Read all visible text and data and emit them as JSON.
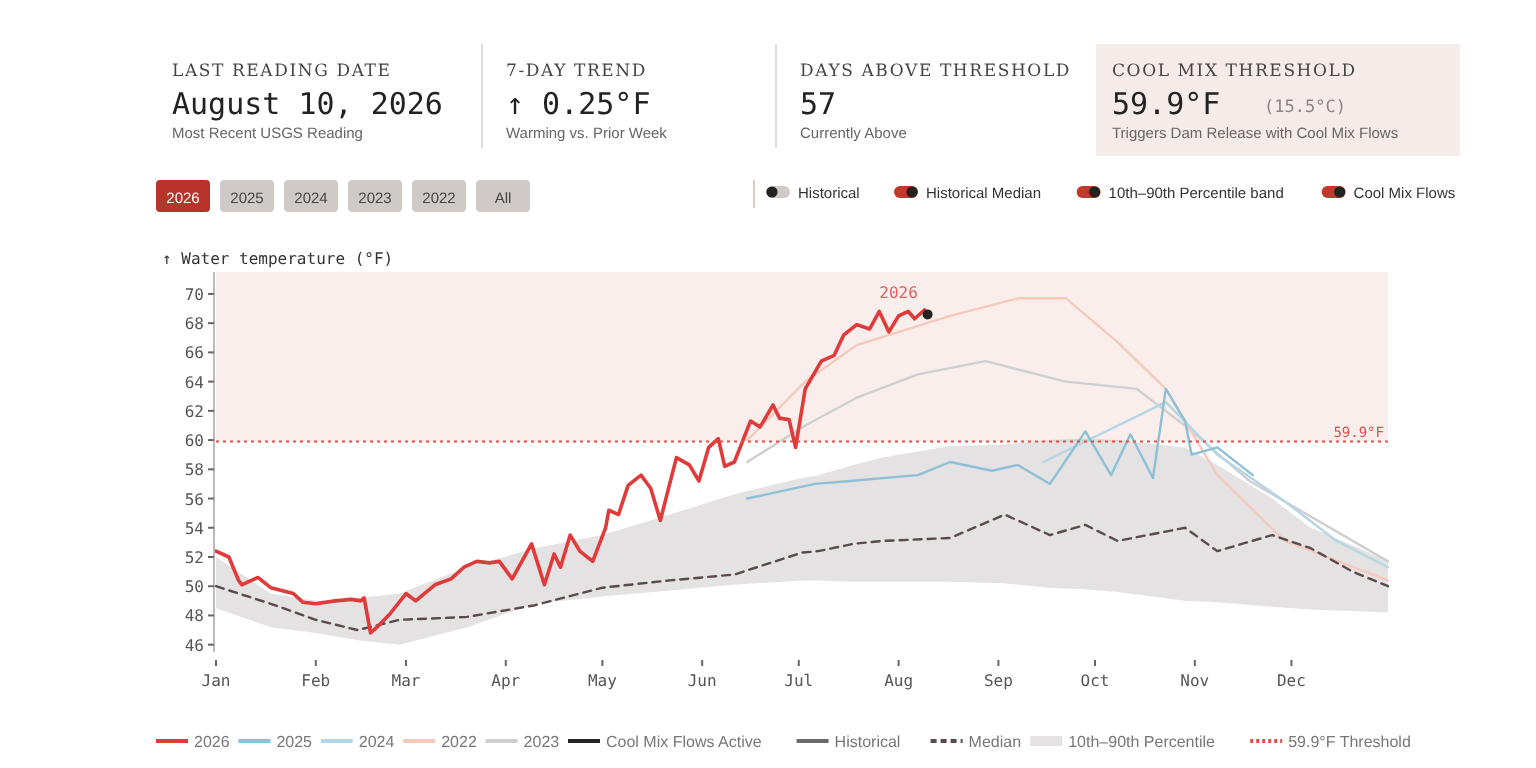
{
  "chart_data": {
    "type": "line",
    "ylabel": "↑ Water temperature (°F)",
    "xlim": [
      "--01-01",
      "--12-31"
    ],
    "xticks": [
      {
        "value": "--01-01",
        "label": "Jan"
      },
      {
        "value": "--02-01",
        "label": "Feb"
      },
      {
        "value": "--03-01",
        "label": "Mar"
      },
      {
        "value": "--04-01",
        "label": "Apr"
      },
      {
        "value": "--05-01",
        "label": "May"
      },
      {
        "value": "--06-01",
        "label": "Jun"
      },
      {
        "value": "--07-01",
        "label": "Jul"
      },
      {
        "value": "--08-01",
        "label": "Aug"
      },
      {
        "value": "--09-01",
        "label": "Sep"
      },
      {
        "value": "--10-01",
        "label": "Oct"
      },
      {
        "value": "--11-01",
        "label": "Nov"
      },
      {
        "value": "--12-01",
        "label": "Dec"
      }
    ],
    "ylim": [
      45.5,
      71.5
    ],
    "yticks": [
      46,
      48,
      50,
      52,
      54,
      56,
      58,
      60,
      62,
      64,
      66,
      68,
      70
    ],
    "legend": "bottom",
    "bands": [
      {
        "axis": "y",
        "from": 59.9,
        "to": 71.5,
        "color": "#f9eeeb"
      }
    ],
    "ref_lines": [
      {
        "axis": "y",
        "value": 59.9,
        "label": "59.9°F",
        "color": "#e0504a",
        "line_style": "dotted"
      }
    ],
    "series": [
      {
        "name": "2023",
        "color": "#cfcfcf",
        "x": [
          "--06-15",
          "--07-03",
          "--07-19",
          "--08-07",
          "--08-28",
          "--09-22",
          "--10-14",
          "--10-30",
          "--11-18",
          "--12-31"
        ],
        "values": [
          58.5,
          61.0,
          62.9,
          64.5,
          65.4,
          64.0,
          63.5,
          60.8,
          57.2,
          51.7
        ]
      },
      {
        "name": "2022",
        "color": "#f5cabd",
        "x": [
          "--06-15",
          "--07-03",
          "--07-19",
          "--08-17",
          "--09-07",
          "--09-22",
          "--10-08",
          "--10-23",
          "--11-08",
          "--11-29",
          "--12-31"
        ],
        "values": [
          60.0,
          64.0,
          66.5,
          68.5,
          69.7,
          69.7,
          66.7,
          63.5,
          57.6,
          53.1,
          50.4
        ]
      },
      {
        "name": "2024",
        "color": "#b5d6e4",
        "x": [
          "--09-15",
          "--10-23",
          "--11-08",
          "--11-29",
          "--12-15",
          "--12-31"
        ],
        "values": [
          58.5,
          62.6,
          59.0,
          55.8,
          53.1,
          51.3
        ]
      },
      {
        "name": "2025",
        "color": "#8dbfd6",
        "x": [
          "--06-15",
          "--07-06",
          "--07-17",
          "--07-27",
          "--08-07",
          "--08-17",
          "--08-30",
          "--09-07",
          "--09-17",
          "--09-28",
          "--10-06",
          "--10-12",
          "--10-19",
          "--10-23",
          "--10-29",
          "--10-31",
          "--11-08",
          "--11-19"
        ],
        "values": [
          56.0,
          57.0,
          57.2,
          57.4,
          57.6,
          58.5,
          57.9,
          58.3,
          57.0,
          60.6,
          57.6,
          60.4,
          57.4,
          63.5,
          61.3,
          59.0,
          59.5,
          57.6
        ]
      },
      {
        "name": "Median",
        "color": "#5a4a4a",
        "line_style": "dashed",
        "upper": [
          52.0,
          49.5,
          49.0,
          49.2,
          49.5,
          51.3,
          52.6,
          53.5,
          54.9,
          56.3,
          57.4,
          57.6,
          58.3,
          58.8,
          59.6,
          59.7,
          59.8,
          60.0,
          60.1,
          60.0,
          59.5,
          58.3,
          56.0,
          54.0,
          52.8,
          51.7
        ],
        "lower": [
          48.5,
          47.2,
          46.8,
          46.3,
          46.0,
          47.2,
          48.8,
          49.3,
          49.7,
          50.1,
          50.4,
          50.4,
          50.3,
          50.3,
          50.3,
          50.2,
          50.1,
          49.9,
          49.8,
          49.6,
          49.0,
          48.9,
          48.6,
          48.4,
          48.3,
          48.2
        ],
        "x": [
          "--01-01",
          "--01-18",
          "--02-01",
          "--02-14",
          "--02-27",
          "--03-20",
          "--04-10",
          "--05-01",
          "--05-22",
          "--06-11",
          "--07-02",
          "--07-07",
          "--07-18",
          "--07-27",
          "--08-17",
          "--09-03",
          "--09-07",
          "--09-17",
          "--09-28",
          "--10-08",
          "--10-29",
          "--11-08",
          "--11-25",
          "--12-07",
          "--12-20",
          "--12-31"
        ],
        "values": [
          50.0,
          48.8,
          47.7,
          47.0,
          47.7,
          47.9,
          48.7,
          49.9,
          50.4,
          50.8,
          52.3,
          52.4,
          52.9,
          53.1,
          53.3,
          54.9,
          54.5,
          53.5,
          54.2,
          53.1,
          54.0,
          52.4,
          53.5,
          52.6,
          51.0,
          50.0
        ]
      },
      {
        "name": "2026",
        "color": "#e03a3a",
        "x": [
          "--01-01",
          "--01-05",
          "--01-08",
          "--01-09",
          "--01-14",
          "--01-18",
          "--01-25",
          "--01-28",
          "--02-01",
          "--02-07",
          "--02-12",
          "--02-15",
          "--02-16",
          "--02-18",
          "--02-20",
          "--02-24",
          "--03-01",
          "--03-04",
          "--03-10",
          "--03-15",
          "--03-19",
          "--03-23",
          "--03-27",
          "--03-30",
          "--04-03",
          "--04-09",
          "--04-13",
          "--04-16",
          "--04-18",
          "--04-21",
          "--04-24",
          "--04-28",
          "--05-02",
          "--05-03",
          "--05-06",
          "--05-09",
          "--05-13",
          "--05-16",
          "--05-19",
          "--05-24",
          "--05-28",
          "--05-31",
          "--06-03",
          "--06-06",
          "--06-08",
          "--06-11",
          "--06-16",
          "--06-19",
          "--06-23",
          "--06-25",
          "--06-28",
          "--06-30",
          "--07-03",
          "--07-08",
          "--07-12",
          "--07-15",
          "--07-19",
          "--07-23",
          "--07-26",
          "--07-29",
          "--08-01",
          "--08-04",
          "--08-06",
          "--08-09",
          "--08-10"
        ],
        "values": [
          52.4,
          52.0,
          50.4,
          50.1,
          50.6,
          49.9,
          49.5,
          48.9,
          48.8,
          49.0,
          49.1,
          49.0,
          49.2,
          46.8,
          47.2,
          48.1,
          49.5,
          49.0,
          50.1,
          50.5,
          51.3,
          51.7,
          51.6,
          51.7,
          50.5,
          52.9,
          50.1,
          52.2,
          51.3,
          53.5,
          52.4,
          51.7,
          54.0,
          55.2,
          54.9,
          56.9,
          57.6,
          56.7,
          54.5,
          58.8,
          58.3,
          57.2,
          59.5,
          60.1,
          58.2,
          58.5,
          61.3,
          60.9,
          62.4,
          61.5,
          61.4,
          59.5,
          63.5,
          65.4,
          65.8,
          67.2,
          67.9,
          67.6,
          68.8,
          67.4,
          68.5,
          68.8,
          68.3,
          68.9,
          68.6
        ]
      }
    ],
    "annotations": [
      "LAST READING DATE",
      "August 10, 2026",
      "Most Recent USGS Reading",
      "7-DAY TREND",
      "↑ 0.25°F",
      "Warming vs. Prior Week",
      "DAYS ABOVE THRESHOLD",
      "57",
      "Currently Above",
      "COOL MIX THRESHOLD",
      "59.9°F",
      "(15.5°C)",
      "Triggers Dam Release with Cool Mix Flows",
      "2026",
      "2025",
      "2024",
      "2023",
      "2022",
      "All",
      "Historical",
      "Historical Median",
      "10th–90th Percentile band",
      "Cool Mix Flows",
      "Cool Mix Flows Active",
      "Historical",
      "59.9°F Threshold",
      "10th–90th Percentile",
      {
        "text": "2026",
        "x": "--08-01",
        "y": 69.3
      }
    ]
  }
}
